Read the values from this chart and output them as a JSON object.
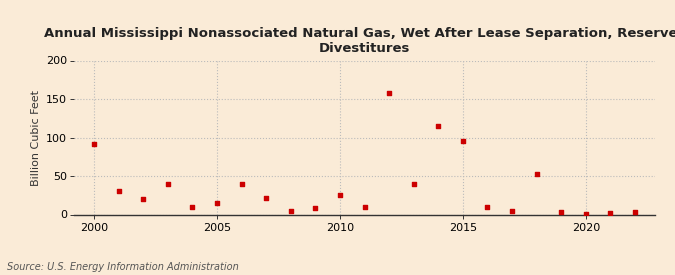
{
  "title": "Annual Mississippi Nonassociated Natural Gas, Wet After Lease Separation, Reserves\nDivestitures",
  "ylabel": "Billion Cubic Feet",
  "source": "Source: U.S. Energy Information Administration",
  "background_color": "#faebd7",
  "plot_background_color": "#faebd7",
  "marker_color": "#cc0000",
  "grid_color": "#bbbbbb",
  "spine_color": "#333333",
  "xlim": [
    1999.2,
    2022.8
  ],
  "ylim": [
    0,
    200
  ],
  "yticks": [
    0,
    50,
    100,
    150,
    200
  ],
  "xticks": [
    2000,
    2005,
    2010,
    2015,
    2020
  ],
  "years": [
    2000,
    2001,
    2002,
    2003,
    2004,
    2005,
    2006,
    2007,
    2008,
    2009,
    2010,
    2011,
    2012,
    2013,
    2014,
    2015,
    2016,
    2017,
    2018,
    2019,
    2020,
    2021,
    2022
  ],
  "values": [
    92,
    31,
    20,
    40,
    10,
    15,
    40,
    21,
    4,
    8,
    25,
    10,
    158,
    40,
    115,
    95,
    10,
    5,
    52,
    3,
    1,
    2,
    3
  ]
}
